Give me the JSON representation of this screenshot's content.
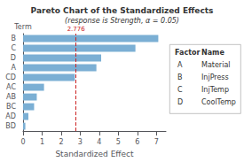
{
  "chart_data": {
    "type": "bar",
    "orientation": "horizontal",
    "title": "Pareto Chart of the Standardized Effects",
    "subtitle": "(response is Strength, α = 0.05)",
    "xlabel": "Standardized Effect",
    "ylabel": "Term",
    "categories": [
      "BD",
      "AD",
      "BC",
      "AB",
      "AC",
      "CD",
      "A",
      "D",
      "C",
      "B"
    ],
    "values": [
      0.12,
      0.28,
      0.58,
      0.72,
      1.1,
      2.72,
      3.85,
      4.1,
      5.9,
      7.1
    ],
    "color": "#7bafd4",
    "xlim": [
      0,
      7.5
    ],
    "xticks": [
      0,
      1,
      2,
      3,
      4,
      5,
      6,
      7
    ],
    "grid": false,
    "annotations": [
      {
        "x": 2.776,
        "label": "2.776",
        "color": "#cc2222",
        "line_style": "dashed"
      }
    ],
    "table": {
      "columns": [
        "Factor",
        "Name"
      ],
      "rows": [
        [
          "A",
          "Material"
        ],
        [
          "B",
          "InjPress"
        ],
        [
          "C",
          "InjTemp"
        ],
        [
          "D",
          "CoolTemp"
        ]
      ]
    }
  }
}
